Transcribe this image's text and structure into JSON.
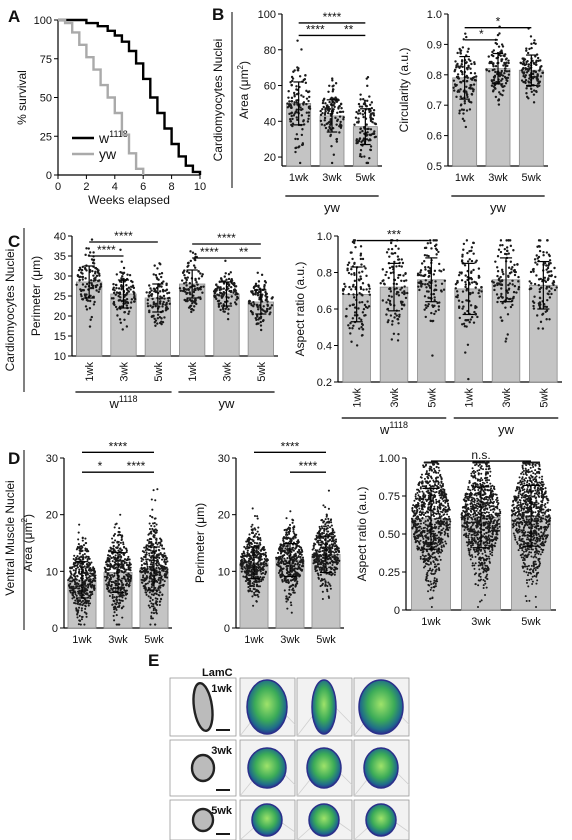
{
  "panels": {
    "A": "A",
    "B": "B",
    "C": "C",
    "D": "D",
    "E": "E"
  },
  "section_labels": {
    "cardio_area": "Cardiomyocytes Nuclei",
    "cardio_perim": "Cardiomyocytes Nuclei",
    "ventral": "Ventral Muscle Nuclei"
  },
  "panel_e": {
    "stain": "LamC",
    "rows": [
      "1wk",
      "3wk",
      "5wk"
    ]
  },
  "chart_data": [
    {
      "id": "A",
      "type": "line",
      "xlabel": "Weeks elapsed",
      "ylabel": "% survival",
      "xlim": [
        0,
        10
      ],
      "ylim": [
        0,
        100
      ],
      "xticks": [
        "0",
        "2",
        "4",
        "6",
        "8",
        "10"
      ],
      "yticks": [
        "0",
        "25",
        "50",
        "75",
        "100"
      ],
      "legend_placement": "bottom-left",
      "series": [
        {
          "name": "w1118",
          "name_base": "w",
          "name_sup": "1118",
          "color": "#000000",
          "x": [
            0,
            1.2,
            2.0,
            2.8,
            3.5,
            4.0,
            4.5,
            5.0,
            5.5,
            6.0,
            6.5,
            7.0,
            7.5,
            8.0,
            8.5,
            9.0,
            9.5,
            10
          ],
          "y": [
            100,
            100,
            98,
            96,
            93,
            90,
            86,
            80,
            72,
            62,
            50,
            40,
            30,
            20,
            12,
            6,
            2,
            0
          ]
        },
        {
          "name": "yw",
          "color": "#aaaaaa",
          "x": [
            0,
            0.5,
            1.0,
            1.5,
            2.0,
            2.5,
            3.0,
            3.5,
            4.0,
            4.5,
            5.0,
            5.5,
            6.0
          ],
          "y": [
            100,
            98,
            92,
            84,
            76,
            68,
            58,
            50,
            40,
            26,
            14,
            4,
            0
          ]
        }
      ]
    },
    {
      "id": "B1",
      "type": "bar",
      "dots": true,
      "n": 120,
      "ylabel": "Area (μm²)",
      "ylabel_base": "Area (μm",
      "ylabel_sup": "2",
      "ylabel_end": ")",
      "ylim": [
        15,
        100
      ],
      "yticks": [
        "20",
        "40",
        "60",
        "80",
        "100"
      ],
      "categories": [
        "1wk",
        "3wk",
        "5wk"
      ],
      "values": [
        50,
        43,
        37
      ],
      "sd": [
        12,
        9,
        10
      ],
      "group_label": "yw",
      "sig": [
        {
          "a": 0,
          "b": 2,
          "label": "****",
          "y": 95
        },
        {
          "a": 0,
          "b": 1,
          "label": "****",
          "y": 88
        },
        {
          "a": 1,
          "b": 2,
          "label": "**",
          "y": 88
        }
      ]
    },
    {
      "id": "B2",
      "type": "bar",
      "dots": true,
      "n": 120,
      "ylabel": "Circularity (a.u.)",
      "ylim": [
        0.5,
        1.0
      ],
      "yticks": [
        "0.5",
        "0.6",
        "0.7",
        "0.8",
        "0.9",
        "1.0"
      ],
      "categories": [
        "1wk",
        "3wk",
        "5wk"
      ],
      "values": [
        0.79,
        0.82,
        0.815
      ],
      "sd": [
        0.07,
        0.05,
        0.05
      ],
      "group_label": "yw",
      "sig": [
        {
          "a": 0,
          "b": 2,
          "label": "*",
          "y": 0.955
        },
        {
          "a": 0,
          "b": 1,
          "label": "*",
          "y": 0.915
        }
      ]
    },
    {
      "id": "C1",
      "type": "bar",
      "dots": true,
      "n": 110,
      "ylabel": "Perimeter (μm)",
      "ylim": [
        10,
        40
      ],
      "yticks": [
        "10",
        "15",
        "20",
        "25",
        "30",
        "35",
        "40"
      ],
      "categories": [
        "1wk",
        "3wk",
        "5wk",
        "1wk",
        "3wk",
        "5wk"
      ],
      "values": [
        28.5,
        25.5,
        24.5,
        28,
        25.5,
        23.5
      ],
      "sd": [
        4,
        3.5,
        3.5,
        3.5,
        3,
        3
      ],
      "groups": [
        {
          "label": "w1118",
          "base": "w",
          "sup": "1118",
          "from": 0,
          "to": 2
        },
        {
          "label": "yw",
          "from": 3,
          "to": 5
        }
      ],
      "sig": [
        {
          "a": 0,
          "b": 2,
          "label": "****",
          "y": 38.5
        },
        {
          "a": 0,
          "b": 1,
          "label": "****",
          "y": 35
        },
        {
          "a": 3,
          "b": 5,
          "label": "****",
          "y": 38
        },
        {
          "a": 3,
          "b": 4,
          "label": "****",
          "y": 34.5
        },
        {
          "a": 4,
          "b": 5,
          "label": "**",
          "y": 34.5
        }
      ]
    },
    {
      "id": "C2",
      "type": "bar",
      "dots": true,
      "n": 110,
      "ylabel": "Aspect ratio (a.u.)",
      "ylim": [
        0.2,
        1.0
      ],
      "yticks": [
        "0.2",
        "0.4",
        "0.6",
        "0.8",
        "1.0"
      ],
      "categories": [
        "1wk",
        "3wk",
        "5wk",
        "1wk",
        "3wk",
        "5wk"
      ],
      "values": [
        0.68,
        0.72,
        0.76,
        0.71,
        0.76,
        0.73
      ],
      "sd": [
        0.15,
        0.13,
        0.12,
        0.14,
        0.12,
        0.13
      ],
      "groups": [
        {
          "label": "w1118",
          "base": "w",
          "sup": "1118",
          "from": 0,
          "to": 2
        },
        {
          "label": "yw",
          "from": 3,
          "to": 5
        }
      ],
      "sig": [
        {
          "a": 0,
          "b": 2,
          "label": "***",
          "y": 0.975
        }
      ]
    },
    {
      "id": "D1",
      "type": "bar",
      "dots": true,
      "n": 420,
      "ylabel": "Area (μm²)",
      "ylabel_base": "Area (μm",
      "ylabel_sup": "2",
      "ylabel_end": ")",
      "ylim": [
        0,
        30
      ],
      "yticks": [
        "0",
        "10",
        "20",
        "30"
      ],
      "categories": [
        "1wk",
        "3wk",
        "5wk"
      ],
      "values": [
        8.5,
        9.8,
        10.5
      ],
      "sd": [
        3.2,
        3.5,
        3.8
      ],
      "sig": [
        {
          "a": 0,
          "b": 2,
          "label": "****",
          "y": 31
        },
        {
          "a": 0,
          "b": 1,
          "label": "*",
          "y": 27.5
        },
        {
          "a": 1,
          "b": 2,
          "label": "****",
          "y": 27.5
        }
      ]
    },
    {
      "id": "D2",
      "type": "bar",
      "dots": true,
      "n": 420,
      "ylabel": "Perimeter (μm)",
      "ylim": [
        0,
        30
      ],
      "yticks": [
        "0",
        "10",
        "20",
        "30"
      ],
      "categories": [
        "1wk",
        "3wk",
        "5wk"
      ],
      "values": [
        11.5,
        12.0,
        13.0
      ],
      "sd": [
        2.8,
        2.9,
        3.2
      ],
      "sig": [
        {
          "a": 0,
          "b": 2,
          "label": "****",
          "y": 31
        },
        {
          "a": 1,
          "b": 2,
          "label": "****",
          "y": 27.5
        }
      ]
    },
    {
      "id": "D3",
      "type": "bar",
      "dots": true,
      "n": 900,
      "ylabel": "Aspect ratio (a.u.)",
      "ylim": [
        0,
        1.0
      ],
      "yticks": [
        "0",
        "0.25",
        "0.50",
        "0.75",
        "1.00"
      ],
      "categories": [
        "1wk",
        "3wk",
        "5wk"
      ],
      "values": [
        0.6,
        0.61,
        0.62
      ],
      "sd": [
        0.2,
        0.2,
        0.2
      ],
      "sig": [
        {
          "a": 0,
          "b": 2,
          "label": "n.s.",
          "y": 0.98,
          "nobar": true
        }
      ]
    }
  ]
}
